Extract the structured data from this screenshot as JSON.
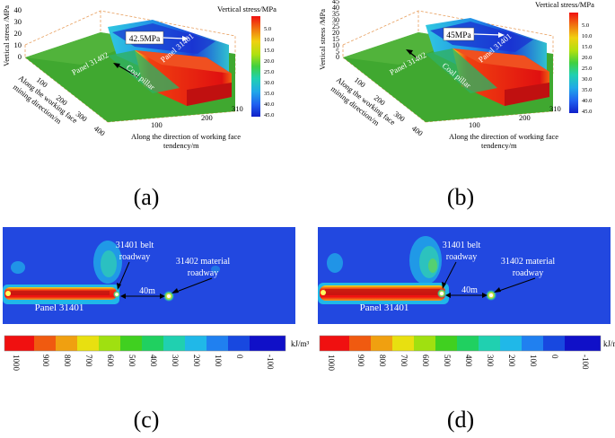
{
  "figure": {
    "panel_a": {
      "label": "(a)",
      "peak_stress": "42.5MPa",
      "legend_title": "Vertical stress/MPa",
      "legend_values": [
        "5.0",
        "10.0",
        "15.0",
        "20.0",
        "25.0",
        "30.0",
        "35.0",
        "40.0",
        "45.0"
      ],
      "z_axis_label": "Vertical stress /MPa",
      "z_ticks": [
        "0",
        "10",
        "20",
        "30",
        "40"
      ],
      "y_axis_label_1": "Along the working face",
      "y_axis_label_2": "mining direction/m",
      "y_ticks": [
        "100",
        "200",
        "300",
        "400"
      ],
      "x_axis_label_1": "Along the direction of working face",
      "x_axis_label_2": "tendency/m",
      "x_ticks": [
        "100",
        "200",
        "310"
      ],
      "label_panel_31402": "Panel 31402",
      "label_coal_pillar": "Coal pillar",
      "label_panel_31401": "Panel 31401"
    },
    "panel_b": {
      "label": "(b)",
      "peak_stress": "45MPa",
      "legend_title": "Vertical stress/MPa",
      "legend_values": [
        "5.0",
        "10.0",
        "15.0",
        "20.0",
        "25.0",
        "30.0",
        "35.0",
        "40.0",
        "45.0"
      ],
      "z_axis_label": "Vertical stress /MPa",
      "z_ticks": [
        "0",
        "5",
        "10",
        "15",
        "20",
        "25",
        "30",
        "35",
        "40",
        "45"
      ],
      "y_axis_label_1": "Along the working face",
      "y_axis_label_2": "mining direction/m",
      "y_ticks": [
        "100",
        "200",
        "300",
        "400"
      ],
      "x_axis_label_1": "Along the direction of working face",
      "x_axis_label_2": "tendency/m",
      "x_ticks": [
        "100",
        "200",
        "310"
      ],
      "label_panel_31402": "Panel 31402",
      "label_coal_pillar": "Coal pillar",
      "label_panel_31401": "Panel 31401"
    },
    "panel_c": {
      "label": "(c)",
      "label_belt_1": "31401 belt",
      "label_belt_2": "roadway",
      "label_material_1": "31402 material",
      "label_material_2": "roadway",
      "label_distance": "40m",
      "label_panel": "Panel 31401"
    },
    "panel_d": {
      "label": "(d)",
      "label_belt_1": "31401 belt",
      "label_belt_2": "roadway",
      "label_material_1": "31402 material",
      "label_material_2": "roadway",
      "label_distance": "40m",
      "label_panel": "Panel 31401"
    },
    "energy_legend": {
      "unit": "kJ/m³",
      "values": [
        "1000",
        "900",
        "800",
        "700",
        "600",
        "500",
        "400",
        "300",
        "200",
        "100",
        "0",
        "-100"
      ],
      "colors": [
        "#f01010",
        "#f05a10",
        "#f0a010",
        "#e8e010",
        "#a0e010",
        "#40d020",
        "#20d060",
        "#20d0b0",
        "#20b8e8",
        "#2080f0",
        "#1848e0",
        "#1010c8"
      ]
    },
    "stress_colors": [
      "#f01010",
      "#f08010",
      "#f0d010",
      "#c8e010",
      "#70d820",
      "#20c850",
      "#20d0b8",
      "#20a8e8",
      "#2060f0",
      "#1020c8"
    ]
  }
}
